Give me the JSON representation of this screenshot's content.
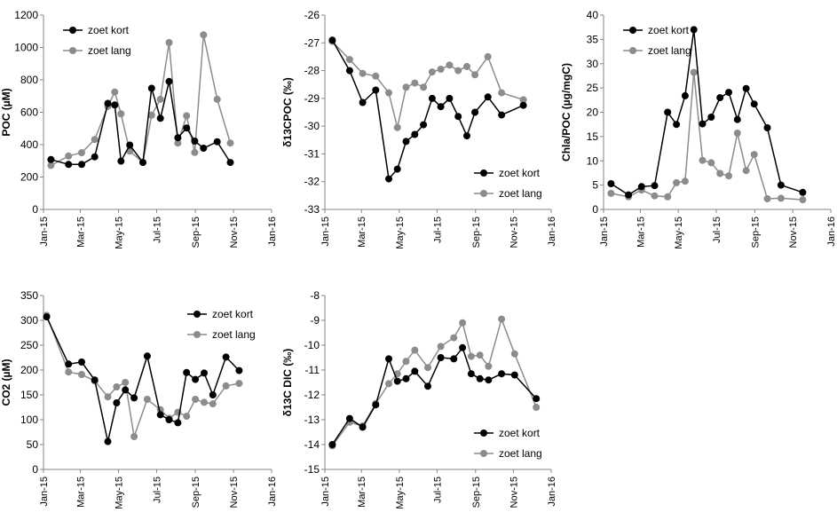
{
  "x_tick_labels": [
    "Jan-15",
    "Mar-15",
    "May-15",
    "Jul-15",
    "Sep-15",
    "Nov-15",
    "Jan-16"
  ],
  "legend_labels": {
    "kort": "zoet kort",
    "lang": "zoet lang"
  },
  "colors": {
    "kort": "#000000",
    "lang": "#8c8c8c",
    "axis": "#868686"
  },
  "chart_data": [
    {
      "type": "line",
      "ylabel": "POC (µM)",
      "ylim": [
        0,
        1200
      ],
      "yticks": [
        0,
        200,
        400,
        600,
        800,
        1000,
        1200
      ],
      "legend_position": "top-left",
      "x_range": [
        "2015-01-01",
        "2016-01-01"
      ],
      "series": [
        {
          "name": "zoet kort",
          "color": "#000000",
          "x": [
            "2015-01-13",
            "2015-02-10",
            "2015-03-03",
            "2015-03-24",
            "2015-04-14",
            "2015-04-25",
            "2015-05-05",
            "2015-05-19",
            "2015-06-09",
            "2015-06-23",
            "2015-07-07",
            "2015-07-21",
            "2015-08-04",
            "2015-08-18",
            "2015-08-31",
            "2015-09-14",
            "2015-10-06",
            "2015-10-27",
            "2015-12-08"
          ],
          "y": [
            308,
            278,
            278,
            325,
            655,
            645,
            298,
            397,
            290,
            748,
            563,
            790,
            443,
            503,
            422,
            378,
            418,
            290,
            null
          ]
        },
        {
          "name": "zoet lang",
          "color": "#8c8c8c",
          "x": [
            "2015-01-13",
            "2015-02-10",
            "2015-03-03",
            "2015-03-24",
            "2015-04-14",
            "2015-04-25",
            "2015-05-05",
            "2015-05-19",
            "2015-06-09",
            "2015-06-23",
            "2015-07-07",
            "2015-07-21",
            "2015-08-04",
            "2015-08-18",
            "2015-08-31",
            "2015-09-14",
            "2015-10-06",
            "2015-10-27",
            "2015-12-08"
          ],
          "y": [
            272,
            330,
            350,
            432,
            636,
            725,
            590,
            360,
            290,
            582,
            680,
            1030,
            410,
            578,
            352,
            1078,
            680,
            410,
            null
          ]
        }
      ]
    },
    {
      "type": "line",
      "ylabel": "δ13CPOC (‰)",
      "ylim": [
        -33,
        -26
      ],
      "yticks": [
        -33,
        -32,
        -31,
        -30,
        -29,
        -28,
        -27,
        -26
      ],
      "legend_position": "bottom-right",
      "x_range": [
        "2015-01-01",
        "2016-01-01"
      ],
      "series": [
        {
          "name": "zoet kort",
          "color": "#000000",
          "x": [
            "2015-01-13",
            "2015-02-10",
            "2015-03-03",
            "2015-03-24",
            "2015-04-14",
            "2015-04-28",
            "2015-05-12",
            "2015-05-26",
            "2015-06-09",
            "2015-06-23",
            "2015-07-07",
            "2015-07-21",
            "2015-08-04",
            "2015-08-18",
            "2015-08-31",
            "2015-09-21",
            "2015-10-13",
            "2015-11-17"
          ],
          "y": [
            -26.9,
            -28.0,
            -29.15,
            -28.7,
            -31.9,
            -31.55,
            -30.55,
            -30.3,
            -29.95,
            -29.0,
            -29.3,
            -29.0,
            -29.65,
            -30.35,
            -29.5,
            -28.95,
            -29.6,
            -29.25
          ]
        },
        {
          "name": "zoet lang",
          "color": "#8c8c8c",
          "x": [
            "2015-01-13",
            "2015-02-10",
            "2015-03-03",
            "2015-03-24",
            "2015-04-14",
            "2015-04-28",
            "2015-05-12",
            "2015-05-26",
            "2015-06-09",
            "2015-06-23",
            "2015-07-07",
            "2015-07-21",
            "2015-08-04",
            "2015-08-18",
            "2015-08-31",
            "2015-09-21",
            "2015-10-13",
            "2015-11-17"
          ],
          "y": [
            -26.95,
            -27.6,
            -28.1,
            -28.2,
            -28.8,
            -30.05,
            -28.6,
            -28.45,
            -28.6,
            -28.05,
            -27.95,
            -27.8,
            -28.0,
            -27.85,
            -28.15,
            -27.5,
            -28.8,
            -29.05
          ]
        }
      ]
    },
    {
      "type": "line",
      "ylabel": "Chla/POC (µg/mgC)",
      "ylim": [
        0,
        40
      ],
      "yticks": [
        0,
        5,
        10,
        15,
        20,
        25,
        30,
        35,
        40
      ],
      "legend_position": "top-left",
      "x_range": [
        "2015-01-01",
        "2016-01-01"
      ],
      "series": [
        {
          "name": "zoet kort",
          "color": "#000000",
          "x": [
            "2015-01-13",
            "2015-02-10",
            "2015-03-03",
            "2015-03-24",
            "2015-04-14",
            "2015-04-28",
            "2015-05-12",
            "2015-05-26",
            "2015-06-09",
            "2015-06-23",
            "2015-07-07",
            "2015-07-21",
            "2015-08-04",
            "2015-08-18",
            "2015-08-31",
            "2015-09-21",
            "2015-10-13",
            "2015-11-17"
          ],
          "y": [
            5.3,
            3.0,
            4.7,
            4.9,
            20.0,
            17.5,
            23.4,
            37.0,
            17.6,
            19.0,
            23.0,
            24.1,
            18.5,
            24.9,
            21.7,
            16.8,
            5.0,
            3.5
          ]
        },
        {
          "name": "zoet lang",
          "color": "#8c8c8c",
          "x": [
            "2015-01-13",
            "2015-02-10",
            "2015-03-03",
            "2015-03-24",
            "2015-04-14",
            "2015-04-28",
            "2015-05-12",
            "2015-05-26",
            "2015-06-09",
            "2015-06-23",
            "2015-07-07",
            "2015-07-21",
            "2015-08-04",
            "2015-08-18",
            "2015-08-31",
            "2015-09-21",
            "2015-10-13",
            "2015-11-17"
          ],
          "y": [
            3.3,
            2.6,
            4.0,
            2.8,
            2.6,
            5.5,
            5.8,
            28.2,
            10.1,
            9.6,
            7.4,
            6.9,
            15.7,
            8.0,
            11.3,
            2.2,
            2.3,
            2.0
          ]
        }
      ]
    },
    {
      "type": "line",
      "ylabel": "CO2 (µM)",
      "ylim": [
        0,
        350
      ],
      "yticks": [
        0,
        50,
        100,
        150,
        200,
        250,
        300,
        350
      ],
      "legend_position": "top-right",
      "x_range": [
        "2015-01-01",
        "2016-01-01"
      ],
      "series": [
        {
          "name": "zoet kort",
          "color": "#000000",
          "x": [
            "2015-01-06",
            "2015-02-10",
            "2015-03-03",
            "2015-03-24",
            "2015-04-14",
            "2015-04-28",
            "2015-05-12",
            "2015-05-26",
            "2015-06-16",
            "2015-07-07",
            "2015-07-21",
            "2015-08-04",
            "2015-08-18",
            "2015-09-01",
            "2015-09-15",
            "2015-09-29",
            "2015-10-20",
            "2015-11-10",
            "2015-12-08"
          ],
          "y": [
            307,
            212,
            216,
            180,
            56,
            134,
            160,
            144,
            228,
            110,
            100,
            94,
            195,
            181,
            194,
            150,
            226,
            199,
            null
          ]
        },
        {
          "name": "zoet lang",
          "color": "#8c8c8c",
          "x": [
            "2015-01-06",
            "2015-02-10",
            "2015-03-03",
            "2015-03-24",
            "2015-04-14",
            "2015-04-28",
            "2015-05-12",
            "2015-05-26",
            "2015-06-16",
            "2015-07-07",
            "2015-07-21",
            "2015-08-04",
            "2015-08-18",
            "2015-09-01",
            "2015-09-15",
            "2015-09-29",
            "2015-10-20",
            "2015-11-10",
            "2015-12-08"
          ],
          "y": [
            310,
            196,
            191,
            178,
            146,
            166,
            175,
            66,
            141,
            120,
            103,
            115,
            107,
            141,
            135,
            132,
            168,
            173,
            null
          ]
        }
      ]
    },
    {
      "type": "line",
      "ylabel": "δ13C DIC (‰)",
      "ylim": [
        -15,
        -8
      ],
      "yticks": [
        -15,
        -14,
        -13,
        -12,
        -11,
        -10,
        -9,
        -8
      ],
      "legend_position": "bottom-right",
      "x_range": [
        "2015-01-01",
        "2016-01-01"
      ],
      "series": [
        {
          "name": "zoet kort",
          "color": "#000000",
          "x": [
            "2015-01-13",
            "2015-02-10",
            "2015-03-03",
            "2015-03-24",
            "2015-04-14",
            "2015-04-28",
            "2015-05-12",
            "2015-05-26",
            "2015-06-16",
            "2015-07-07",
            "2015-07-28",
            "2015-08-11",
            "2015-08-25",
            "2015-09-08",
            "2015-09-22",
            "2015-10-13",
            "2015-11-03",
            "2015-12-08"
          ],
          "y": [
            -14.0,
            -12.95,
            -13.3,
            -12.4,
            -10.55,
            -11.45,
            -11.35,
            -11.05,
            -11.65,
            -10.5,
            -10.55,
            -10.1,
            -11.15,
            -11.35,
            -11.4,
            -11.15,
            -11.2,
            -12.15
          ]
        },
        {
          "name": "zoet lang",
          "color": "#8c8c8c",
          "x": [
            "2015-01-13",
            "2015-02-10",
            "2015-03-03",
            "2015-03-24",
            "2015-04-14",
            "2015-04-28",
            "2015-05-12",
            "2015-05-26",
            "2015-06-16",
            "2015-07-07",
            "2015-07-28",
            "2015-08-11",
            "2015-08-25",
            "2015-09-08",
            "2015-09-22",
            "2015-10-13",
            "2015-11-03",
            "2015-12-08"
          ],
          "y": [
            -14.05,
            -13.1,
            -13.25,
            -12.35,
            -11.55,
            -11.15,
            -10.65,
            -10.2,
            -10.9,
            -10.05,
            -9.7,
            -9.1,
            -10.45,
            -10.4,
            -10.85,
            -8.95,
            -10.35,
            -12.5
          ]
        }
      ]
    }
  ]
}
